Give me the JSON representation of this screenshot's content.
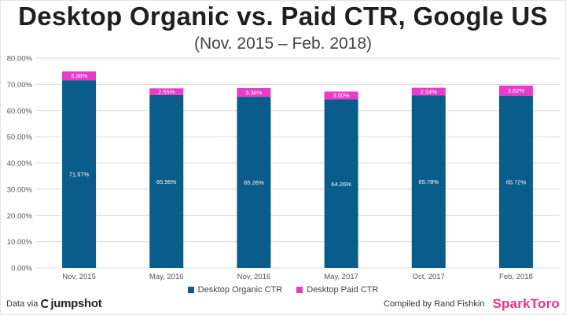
{
  "title": "Desktop Organic vs. Paid CTR, Google US",
  "subtitle": "(Nov. 2015 – Feb. 2018)",
  "colors": {
    "organic": "#0a5c8a",
    "paid": "#e73cc8",
    "grid": "#d9d9d9"
  },
  "chart_data": {
    "type": "bar",
    "stacked": true,
    "categories": [
      "Nov, 2015",
      "May, 2016",
      "Nov, 2016",
      "May, 2017",
      "Oct, 2017",
      "Feb, 2018"
    ],
    "series": [
      {
        "name": "Desktop Organic CTR",
        "values": [
          71.57,
          65.95,
          65.26,
          64.26,
          65.78,
          65.72
        ],
        "labels": [
          "71.57%",
          "65.95%",
          "65.26%",
          "64.26%",
          "65.78%",
          "65.72%"
        ]
      },
      {
        "name": "Desktop Paid CTR",
        "values": [
          3.38,
          2.55,
          3.36,
          3.0,
          2.94,
          3.82
        ],
        "labels": [
          "3.38%",
          "2.55%",
          "3.36%",
          "3.00%",
          "2.94%",
          "3.82%"
        ]
      }
    ],
    "ylim": [
      0,
      80
    ],
    "yticks": [
      "0.00%",
      "10.00%",
      "20.00%",
      "30.00%",
      "40.00%",
      "50.00%",
      "60.00%",
      "70.00%",
      "80.00%"
    ],
    "legend_position": "bottom",
    "grid": true
  },
  "footer": {
    "data_via": "Data via",
    "source_brand": "jumpshot",
    "compiled_by": "Compiled by Rand Fishkin",
    "brand": "SparkToro"
  }
}
